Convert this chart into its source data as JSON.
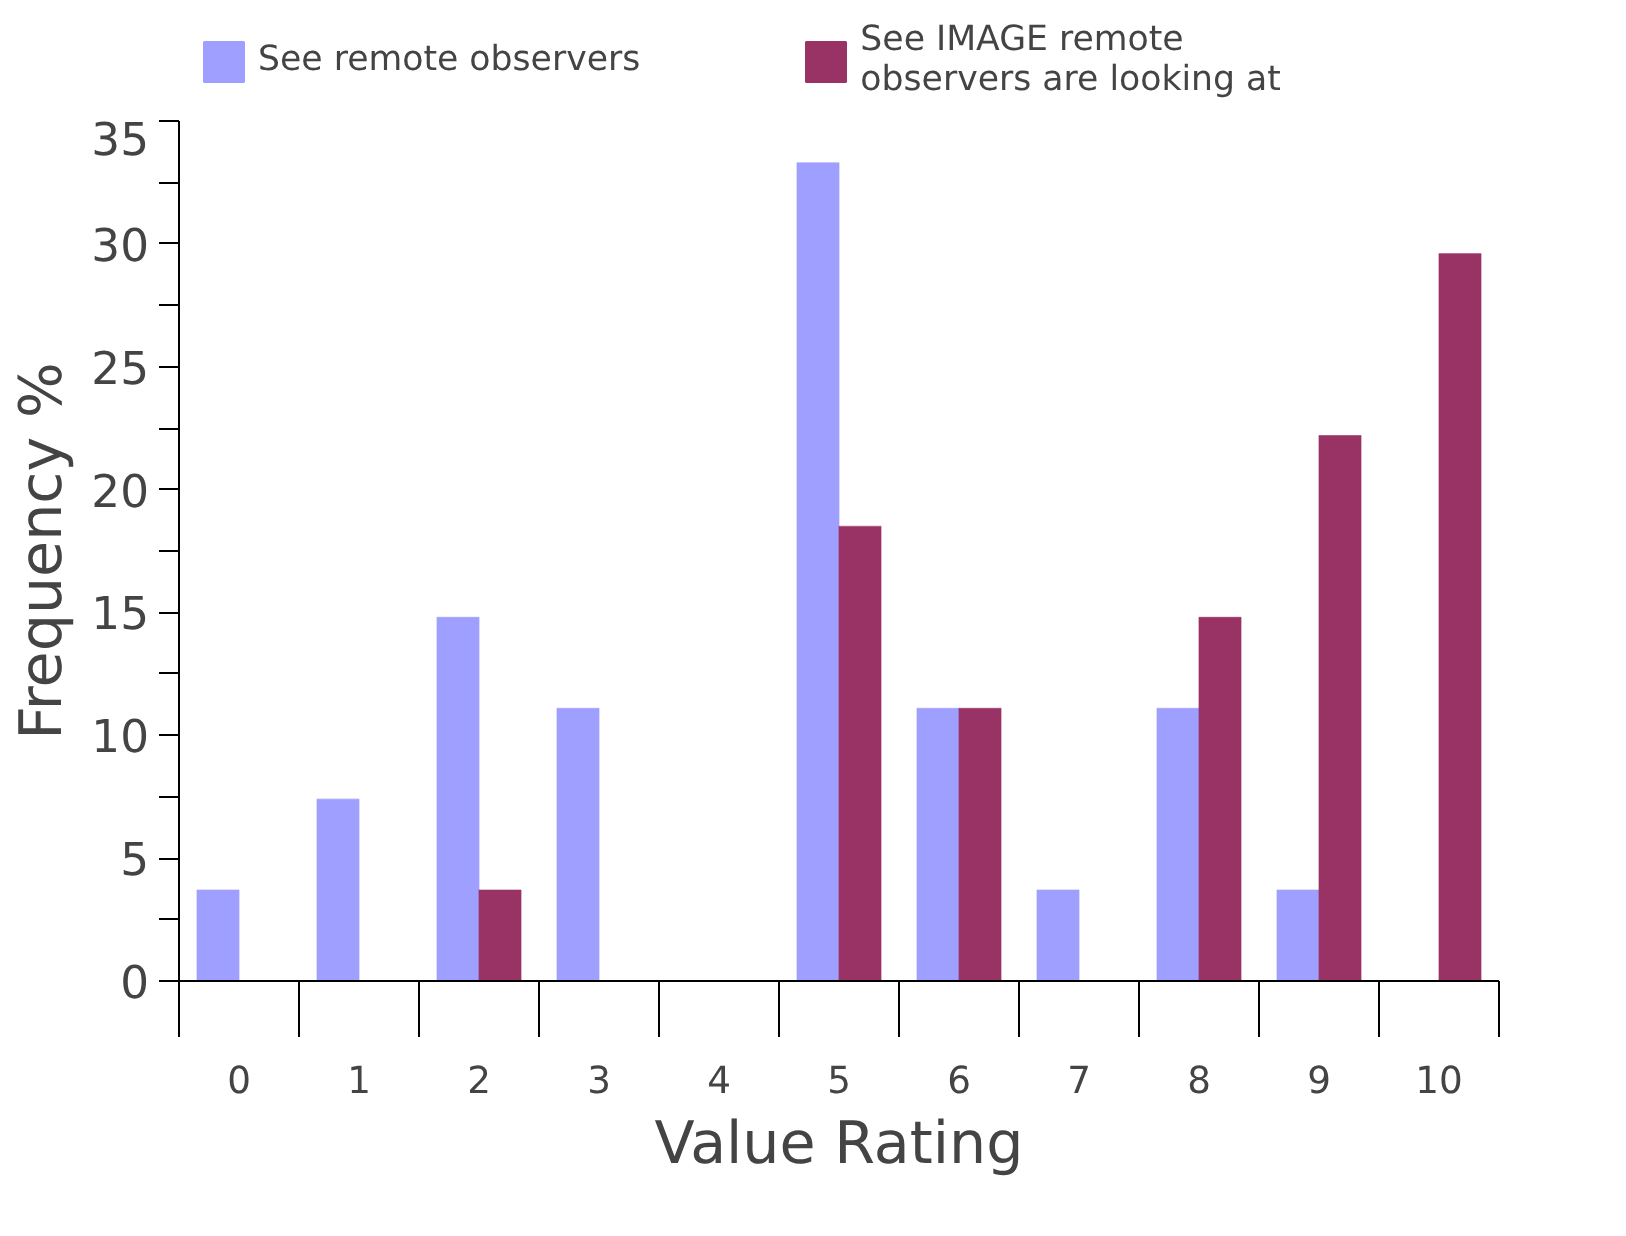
{
  "chart_data": {
    "type": "bar",
    "xlabel": "Value Rating",
    "ylabel": "Frequency %",
    "categories": [
      "0",
      "1",
      "2",
      "3",
      "4",
      "5",
      "6",
      "7",
      "8",
      "9",
      "10"
    ],
    "series": [
      {
        "name": "See remote observers",
        "color": "#9f9fff",
        "values": [
          3.7,
          7.4,
          14.8,
          11.1,
          0,
          33.3,
          11.1,
          3.7,
          11.1,
          3.7,
          0
        ]
      },
      {
        "name": "See IMAGE remote observers are looking at",
        "color": "#993366",
        "values": [
          0,
          0,
          3.7,
          0,
          0,
          18.5,
          11.1,
          0,
          14.8,
          22.2,
          29.6
        ]
      }
    ],
    "ylim": [
      0,
      35
    ],
    "yticks": [
      0,
      {
        "value": 2.5,
        "label": null
      },
      5,
      {
        "value": 7.5,
        "label": null
      },
      10,
      {
        "value": 12.5,
        "label": null
      },
      15,
      {
        "value": 17.5,
        "label": null
      },
      20,
      {
        "value": 22.5,
        "label": null
      },
      25,
      {
        "value": 27.5,
        "label": null
      },
      30,
      {
        "value": 32.5,
        "label": null
      },
      35
    ],
    "grid": false,
    "legend": "top"
  }
}
